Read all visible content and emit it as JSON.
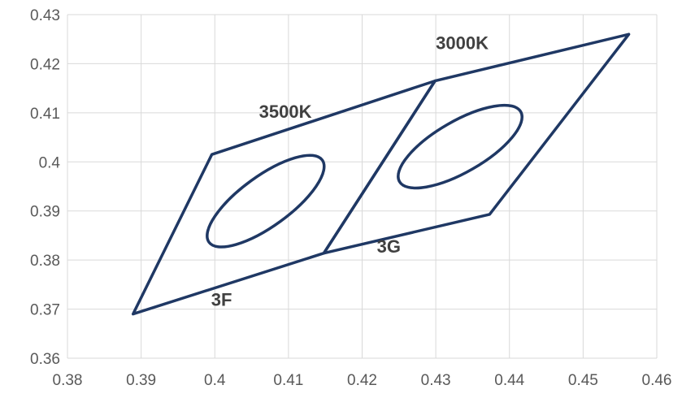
{
  "chart_data": {
    "type": "scatter",
    "title": "",
    "xlabel": "",
    "ylabel": "",
    "xlim": [
      0.38,
      0.46
    ],
    "ylim": [
      0.36,
      0.43
    ],
    "x_ticks": [
      "0.38",
      "0.39",
      "0.4",
      "0.41",
      "0.42",
      "0.43",
      "0.44",
      "0.45",
      "0.46"
    ],
    "y_ticks": [
      "0.36",
      "0.37",
      "0.38",
      "0.39",
      "0.4",
      "0.41",
      "0.42",
      "0.43"
    ],
    "grid": true,
    "line_color": "#1f3864",
    "regions": [
      {
        "id": "3F-3500K",
        "points": [
          [
            0.3889,
            0.369
          ],
          [
            0.3996,
            0.4015
          ],
          [
            0.4299,
            0.4165
          ],
          [
            0.4148,
            0.3814
          ]
        ]
      },
      {
        "id": "3G-3000K",
        "points": [
          [
            0.4148,
            0.3814
          ],
          [
            0.4299,
            0.4165
          ],
          [
            0.4562,
            0.426
          ],
          [
            0.4373,
            0.3893
          ]
        ]
      }
    ],
    "ellipses": [
      {
        "id": "ellipse-3500K",
        "cx": 0.4069,
        "cy": 0.392,
        "rx": 0.0095,
        "ry": 0.0051,
        "rotation_deg": -36
      },
      {
        "id": "ellipse-3000K",
        "cx": 0.4333,
        "cy": 0.4031,
        "rx": 0.0095,
        "ry": 0.0052,
        "rotation_deg": -30
      }
    ],
    "annotations": [
      {
        "text": "3000K",
        "x": 0.43,
        "y": 0.423
      },
      {
        "text": "3500K",
        "x": 0.406,
        "y": 0.409
      },
      {
        "text": "3G",
        "x": 0.422,
        "y": 0.3815
      },
      {
        "text": "3F",
        "x": 0.3995,
        "y": 0.3707
      }
    ]
  }
}
